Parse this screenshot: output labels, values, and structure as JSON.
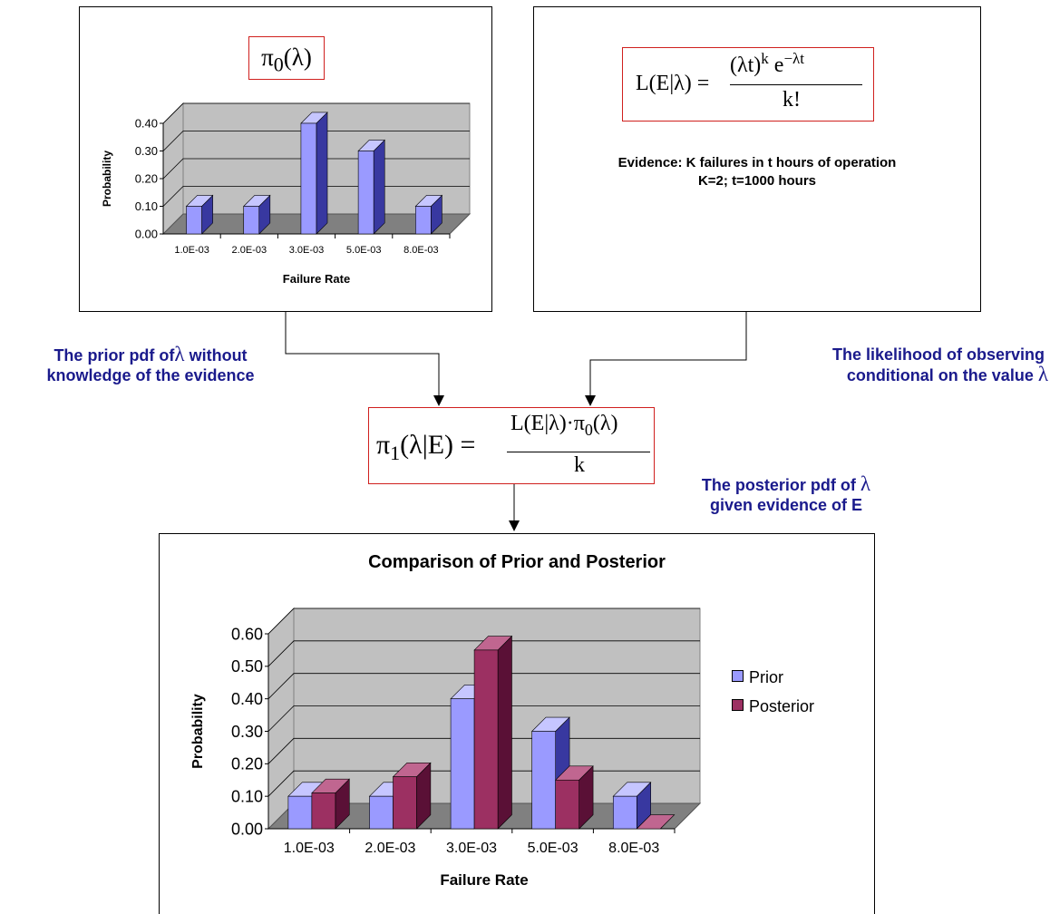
{
  "prior_panel": {
    "formula": "π0(λ)",
    "formula_base": "π",
    "formula_sub": "0",
    "formula_arg": "(λ)"
  },
  "likelihood_panel": {
    "formula_lhs": "L(E|λ) =",
    "formula_num": "(λt)^k e^−λt",
    "formula_den": "k!",
    "evidence_line1": "Evidence: K failures in t hours of operation",
    "evidence_line2": "K=2; t=1000 hours"
  },
  "posterior_formula": {
    "lhs": "π1(λ|E) =",
    "num": "L(E|λ)·π0(λ)",
    "den": "k"
  },
  "notes": {
    "prior_note_line1a": "The prior pdf of",
    "prior_note_symbol": "λ",
    "prior_note_line1b": " without",
    "prior_note_line2": "knowledge of the evidence",
    "likelihood_line1": "The likelihood of observing",
    "likelihood_line2a": "conditional on the value ",
    "likelihood_symbol": "λ",
    "posterior_line1a": "The posterior pdf of ",
    "posterior_symbol": "λ",
    "posterior_line2": "given evidence of E"
  },
  "colors": {
    "prior_front": "#9a9aff",
    "prior_side": "#3838a0",
    "prior_top": "#c6c6ff",
    "posterior_front": "#9c3062",
    "posterior_side": "#5a1036",
    "posterior_top": "#c06690",
    "plot_wall": "#c0c0c0",
    "plot_floor": "#808080",
    "red_border": "#d0201e",
    "note_blue": "#1a1a8c"
  },
  "chart_data": [
    {
      "type": "bar",
      "categories": [
        "1.0E-03",
        "2.0E-03",
        "3.0E-03",
        "5.0E-03",
        "8.0E-03"
      ],
      "series": [
        {
          "values": [
            0.1,
            0.1,
            0.4,
            0.3,
            0.1
          ]
        }
      ],
      "title": "",
      "xlabel": "Failure Rate",
      "ylabel": "Probability",
      "ylim": [
        0,
        0.4
      ],
      "yticks": [
        "0.00",
        "0.10",
        "0.20",
        "0.30",
        "0.40"
      ],
      "grid": true,
      "legend": "none",
      "style": "3d"
    },
    {
      "type": "bar",
      "categories": [
        "1.0E-03",
        "2.0E-03",
        "3.0E-03",
        "5.0E-03",
        "8.0E-03"
      ],
      "series": [
        {
          "name": "Prior",
          "values": [
            0.1,
            0.1,
            0.4,
            0.3,
            0.1
          ]
        },
        {
          "name": "Posterior",
          "values": [
            0.11,
            0.16,
            0.55,
            0.15,
            0.0
          ]
        }
      ],
      "title": "Comparison of Prior and Posterior",
      "xlabel": "Failure Rate",
      "ylabel": "Probability",
      "ylim": [
        0,
        0.6
      ],
      "yticks": [
        "0.00",
        "0.10",
        "0.20",
        "0.30",
        "0.40",
        "0.50",
        "0.60"
      ],
      "grid": true,
      "legend": "right",
      "style": "3d"
    }
  ]
}
